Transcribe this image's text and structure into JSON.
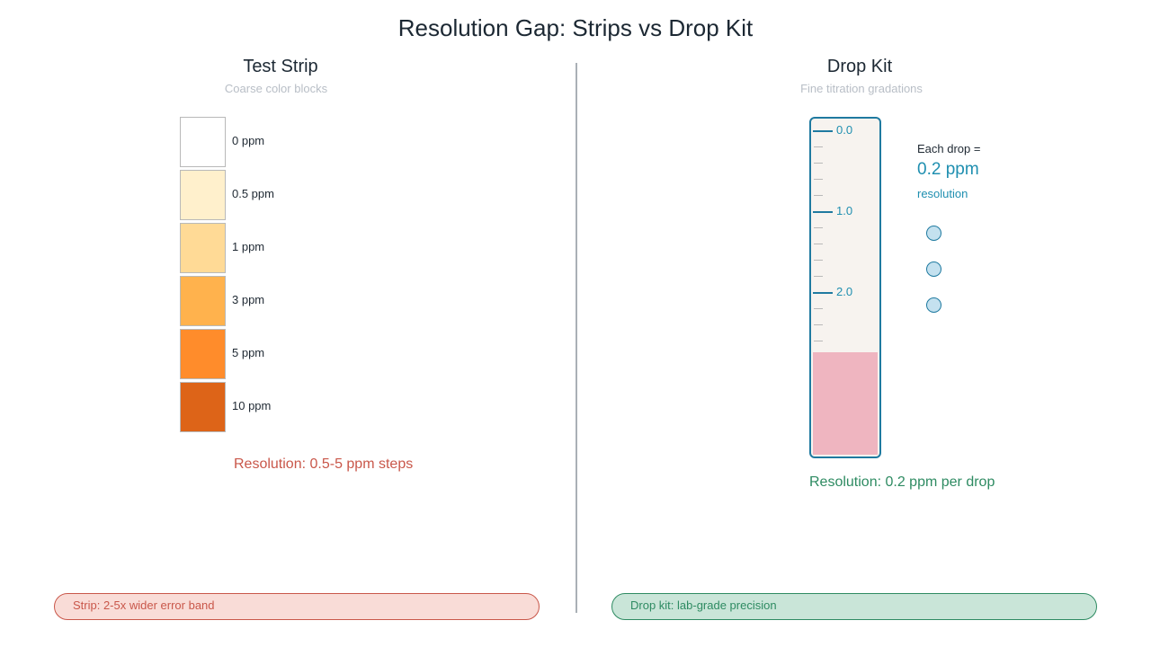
{
  "title": "Resolution Gap: Strips vs Drop Kit",
  "strip_panel": {
    "title": "Test Strip",
    "subtitle": "Coarse color blocks",
    "swatches": [
      {
        "label": "0 ppm",
        "color": "#ffffff"
      },
      {
        "label": "0.5 ppm",
        "color": "#fff0cc"
      },
      {
        "label": "1 ppm",
        "color": "#ffda96"
      },
      {
        "label": "3 ppm",
        "color": "#ffb24d"
      },
      {
        "label": "5 ppm",
        "color": "#ff8c2b"
      },
      {
        "label": "10 ppm",
        "color": "#dd6418"
      }
    ],
    "resolution_text": "Resolution: 0.5-5 ppm steps"
  },
  "kit_panel": {
    "title": "Drop Kit",
    "subtitle": "Fine titration gradations",
    "scale_labels": [
      "0.0",
      "1.0",
      "2.0"
    ],
    "info_line1": "Each drop =",
    "info_value": "0.2 ppm",
    "info_line3": "resolution",
    "resolution_text": "Resolution: 0.2 ppm per drop"
  },
  "footer": {
    "strip_note": "Strip: 2-5x wider error band",
    "kit_note": "Drop kit: lab-grade precision"
  },
  "colors": {
    "strip_accent": "#c9574a",
    "kit_accent": "#2e8b62",
    "tube_accent": "#1f7aa0"
  }
}
